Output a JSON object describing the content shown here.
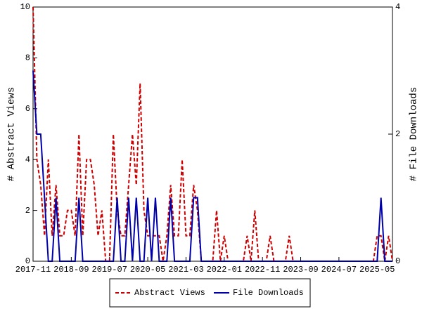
{
  "chart_data": {
    "type": "line",
    "ylabel": "# Abstract Views",
    "y2label": "# File Downloads",
    "categories": [
      "2017-11",
      "2017-12",
      "2018-01",
      "2018-02",
      "2018-03",
      "2018-04",
      "2018-05",
      "2018-06",
      "2018-07",
      "2018-08",
      "2018-09",
      "2018-10",
      "2018-11",
      "2018-12",
      "2019-01",
      "2019-02",
      "2019-03",
      "2019-04",
      "2019-05",
      "2019-06",
      "2019-07",
      "2019-08",
      "2019-09",
      "2019-10",
      "2019-11",
      "2019-12",
      "2020-01",
      "2020-02",
      "2020-03",
      "2020-04",
      "2020-05",
      "2020-06",
      "2020-07",
      "2020-08",
      "2020-09",
      "2020-10",
      "2020-11",
      "2020-12",
      "2021-01",
      "2021-02",
      "2021-03",
      "2021-04",
      "2021-05",
      "2021-06",
      "2021-07",
      "2021-08",
      "2021-09",
      "2021-10",
      "2021-11",
      "2021-12",
      "2022-01",
      "2022-02",
      "2022-03",
      "2022-04",
      "2022-05",
      "2022-06",
      "2022-07",
      "2022-08",
      "2022-09",
      "2022-10",
      "2022-11",
      "2022-12",
      "2023-01",
      "2023-02",
      "2023-03",
      "2023-04",
      "2023-05",
      "2023-06",
      "2023-07",
      "2023-08",
      "2023-09",
      "2023-10",
      "2023-11",
      "2023-12",
      "2024-01",
      "2024-02",
      "2024-03",
      "2024-04",
      "2024-05",
      "2024-06",
      "2024-07",
      "2024-08",
      "2024-09",
      "2024-10",
      "2024-11",
      "2024-12",
      "2025-01",
      "2025-02",
      "2025-03",
      "2025-04",
      "2025-05",
      "2025-06",
      "2025-07",
      "2025-08",
      "2025-09"
    ],
    "xticks": [
      "2017-11",
      "2018-09",
      "2019-07",
      "2020-05",
      "2021-03",
      "2022-01",
      "2022-11",
      "2023-09",
      "2024-07",
      "2025-05"
    ],
    "series": [
      {
        "name": "Abstract Views",
        "color": "#cc0000",
        "dash": true,
        "values": [
          10,
          4,
          3,
          1,
          4,
          1,
          3,
          1,
          1,
          2,
          2,
          1,
          5,
          1,
          4,
          4,
          3,
          1,
          2,
          0,
          0,
          5,
          2,
          1,
          1,
          3,
          5,
          3,
          7,
          2,
          1,
          1,
          1,
          1,
          0,
          1,
          3,
          1,
          1,
          4,
          1,
          1,
          3,
          2,
          0,
          0,
          0,
          0,
          2,
          0,
          1,
          0,
          0,
          0,
          0,
          0,
          1,
          0,
          2,
          0,
          0,
          0,
          1,
          0,
          0,
          0,
          0,
          1,
          0,
          0,
          0,
          0,
          0,
          0,
          0,
          0,
          0,
          0,
          0,
          0,
          0,
          0,
          0,
          0,
          0,
          0,
          0,
          0,
          0,
          0,
          1,
          1,
          0,
          1,
          0
        ]
      },
      {
        "name": "File Downloads",
        "color": "#0000aa",
        "dash": false,
        "axis": "y2",
        "values": [
          3,
          2,
          2,
          1,
          0,
          0,
          1,
          0,
          0,
          0,
          0,
          0,
          1,
          0,
          0,
          0,
          0,
          0,
          0,
          0,
          0,
          0,
          1,
          0,
          0,
          1,
          0,
          1,
          0,
          0,
          1,
          0,
          1,
          0,
          0,
          0,
          1,
          0,
          0,
          0,
          0,
          0,
          1,
          1,
          0,
          0,
          0,
          0,
          0,
          0,
          0,
          0,
          0,
          0,
          0,
          0,
          0,
          0,
          0,
          0,
          0,
          0,
          0,
          0,
          0,
          0,
          0,
          0,
          0,
          0,
          0,
          0,
          0,
          0,
          0,
          0,
          0,
          0,
          0,
          0,
          0,
          0,
          0,
          0,
          0,
          0,
          0,
          0,
          0,
          0,
          0,
          1,
          0,
          0,
          0
        ]
      }
    ],
    "ylim": [
      0,
      10
    ],
    "yticks": [
      0,
      2,
      4,
      6,
      8,
      10
    ],
    "y2lim": [
      0,
      4
    ],
    "y2ticks": [
      0,
      2,
      4
    ],
    "grid": false,
    "legend": "bottom"
  }
}
